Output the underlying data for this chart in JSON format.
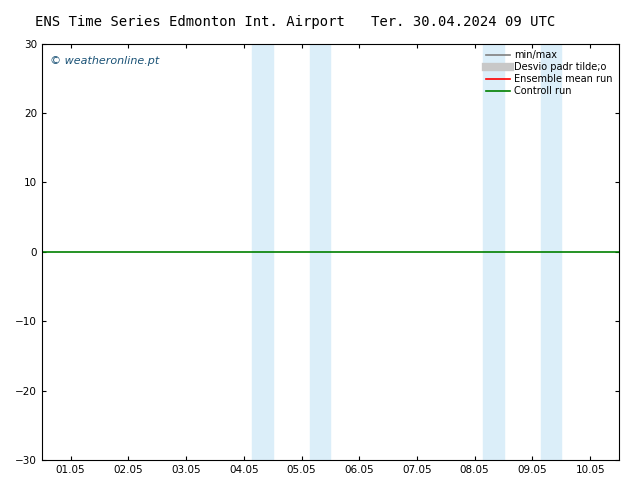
{
  "title_left": "ENS Time Series Edmonton Int. Airport",
  "title_right": "Ter. 30.04.2024 09 UTC",
  "watermark": "© weatheronline.pt",
  "ylim": [
    -30,
    30
  ],
  "yticks": [
    -30,
    -20,
    -10,
    0,
    10,
    20,
    30
  ],
  "xlabel_dates": [
    "01.05",
    "02.05",
    "03.05",
    "04.05",
    "05.05",
    "06.05",
    "07.05",
    "08.05",
    "09.05",
    "10.05"
  ],
  "shade_bands": [
    {
      "xstart": 3.15,
      "xend": 3.5
    },
    {
      "xstart": 4.15,
      "xend": 4.5
    },
    {
      "xstart": 7.15,
      "xend": 7.5
    },
    {
      "xstart": 8.15,
      "xend": 8.5
    }
  ],
  "shade_color": "#dbeef9",
  "background_color": "#ffffff",
  "zero_line_color": "#008000",
  "legend_labels": [
    "min/max",
    "Desvio padr tilde;o",
    "Ensemble mean run",
    "Controll run"
  ],
  "legend_colors": [
    "#808080",
    "#c8c8c8",
    "#ff0000",
    "#008000"
  ],
  "legend_lws": [
    1.2,
    6,
    1.2,
    1.2
  ],
  "title_fontsize": 10,
  "tick_fontsize": 7.5,
  "watermark_fontsize": 8,
  "watermark_color": "#1a5276"
}
